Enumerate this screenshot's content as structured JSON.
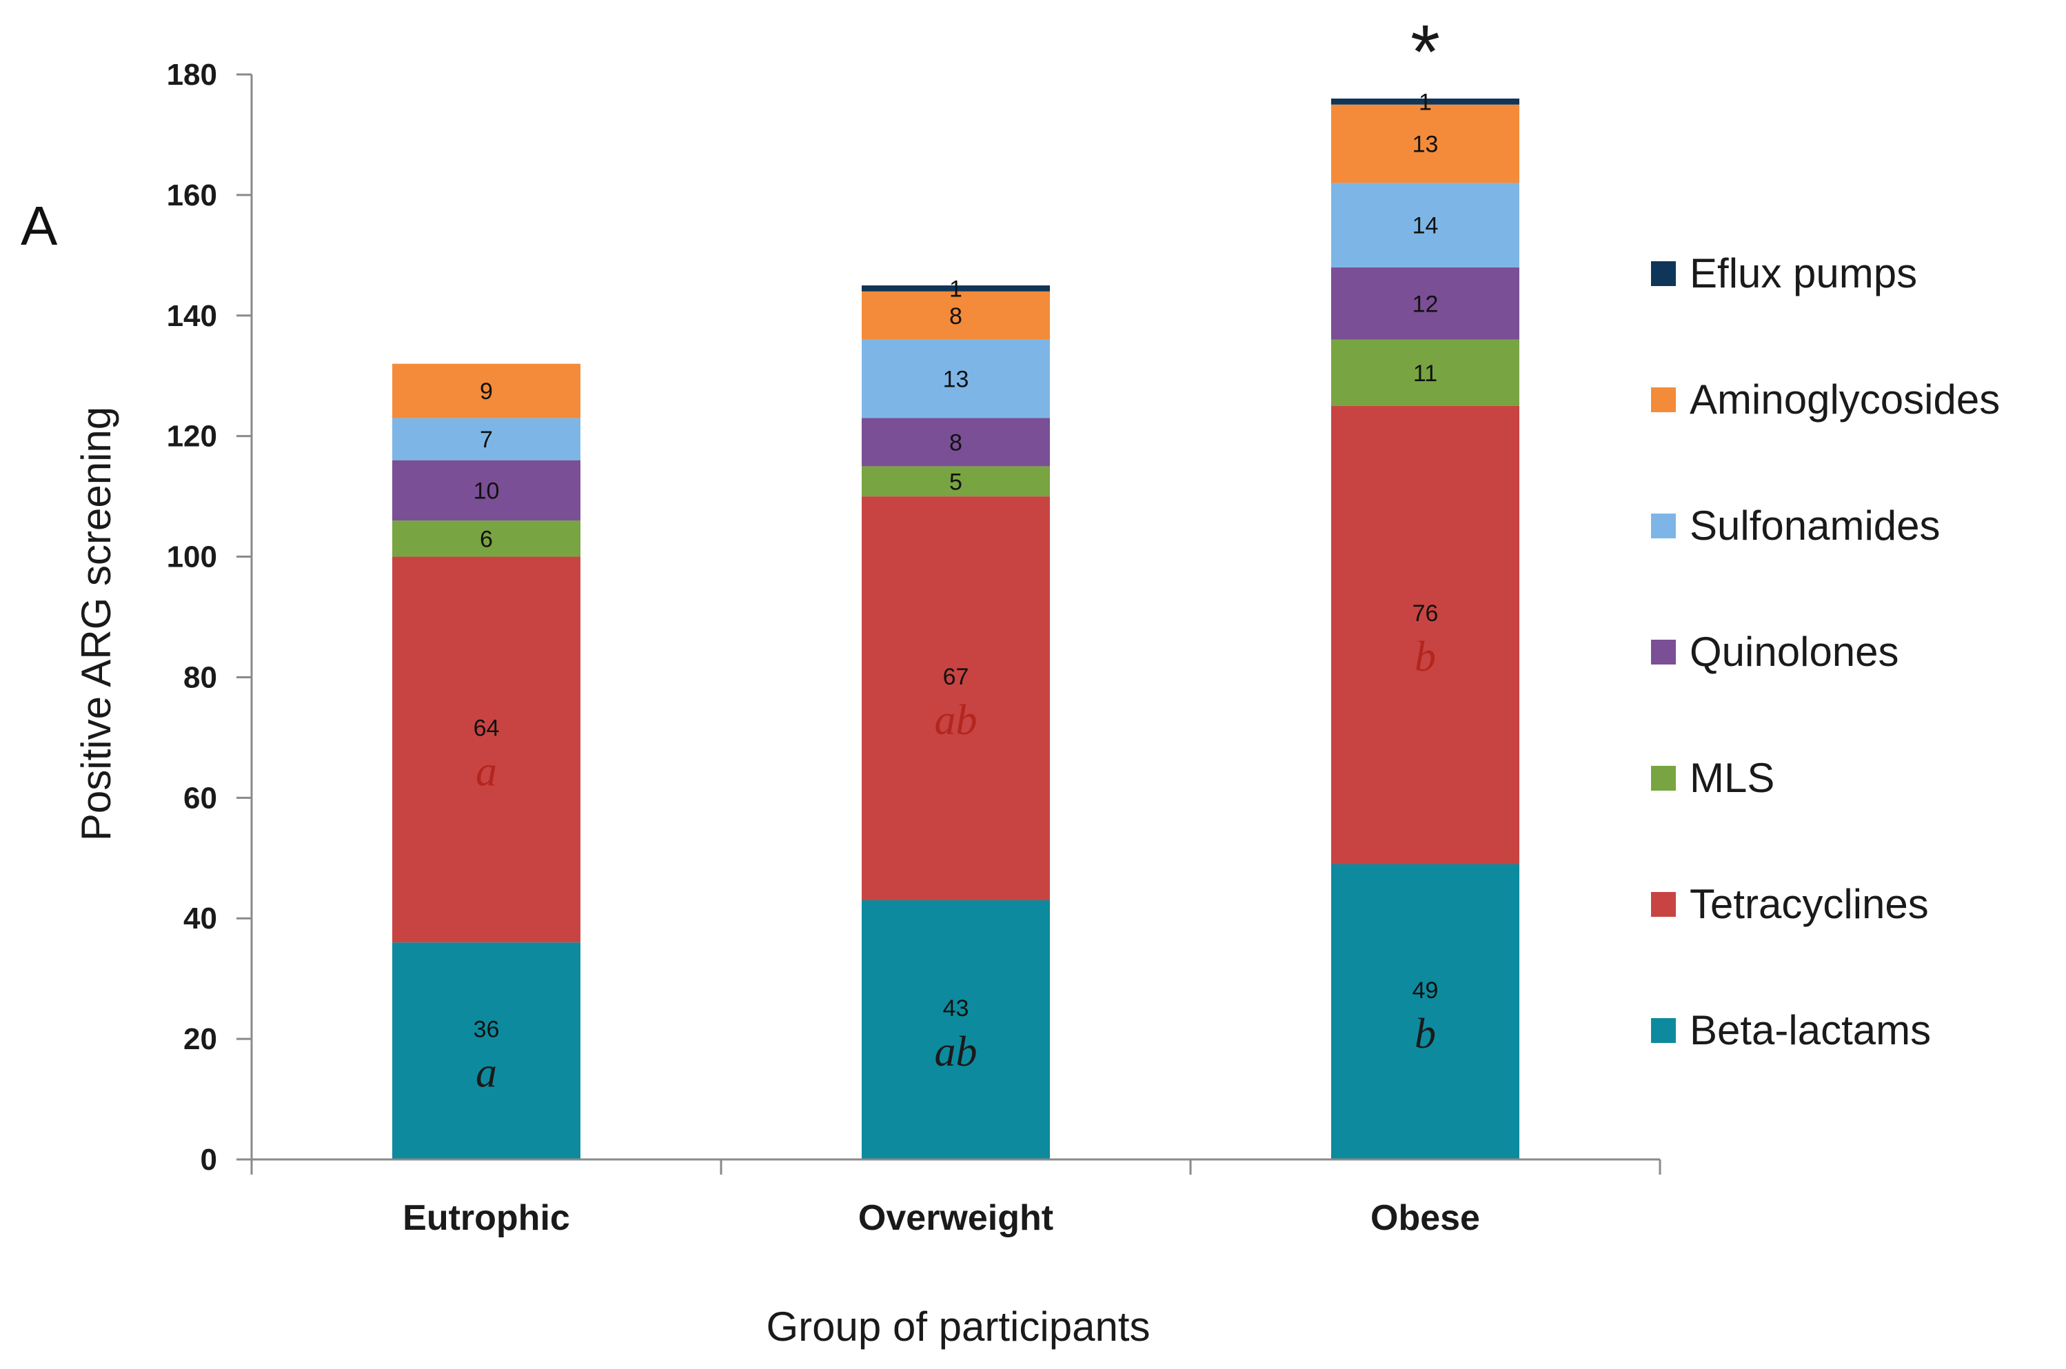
{
  "panel_label": "A",
  "chart_data": {
    "type": "bar",
    "stacked": true,
    "xlabel": "Group of participants",
    "ylabel": "Positive ARG screening",
    "ylim": [
      0,
      180
    ],
    "yticks": [
      0,
      20,
      40,
      60,
      80,
      100,
      120,
      140,
      160,
      180
    ],
    "grid": false,
    "legend_position": "right",
    "categories": [
      "Eutrophic",
      "Overweight",
      "Obese"
    ],
    "series": [
      {
        "name": "Beta-lactams",
        "color": "#0d8a9e",
        "values": [
          36,
          43,
          49
        ],
        "letters": [
          "a",
          "ab",
          "b"
        ],
        "letter_color": "#1a1a1a"
      },
      {
        "name": "Tetracyclines",
        "color": "#c84442",
        "values": [
          64,
          67,
          76
        ],
        "letters": [
          "a",
          "ab",
          "b"
        ],
        "letter_color": "#b3261e"
      },
      {
        "name": "MLS",
        "color": "#78a441",
        "values": [
          6,
          5,
          11
        ]
      },
      {
        "name": "Quinolones",
        "color": "#7a4f95",
        "values": [
          10,
          8,
          12
        ]
      },
      {
        "name": "Sulfonamides",
        "color": "#7db6e6",
        "values": [
          7,
          13,
          14
        ]
      },
      {
        "name": "Aminoglycosides",
        "color": "#f38b3a",
        "values": [
          9,
          8,
          13
        ]
      },
      {
        "name": "Eflux pumps",
        "color": "#0f3558",
        "values": [
          0,
          1,
          1
        ]
      }
    ],
    "annotations": [
      {
        "category": "Obese",
        "text": "*"
      }
    ]
  }
}
